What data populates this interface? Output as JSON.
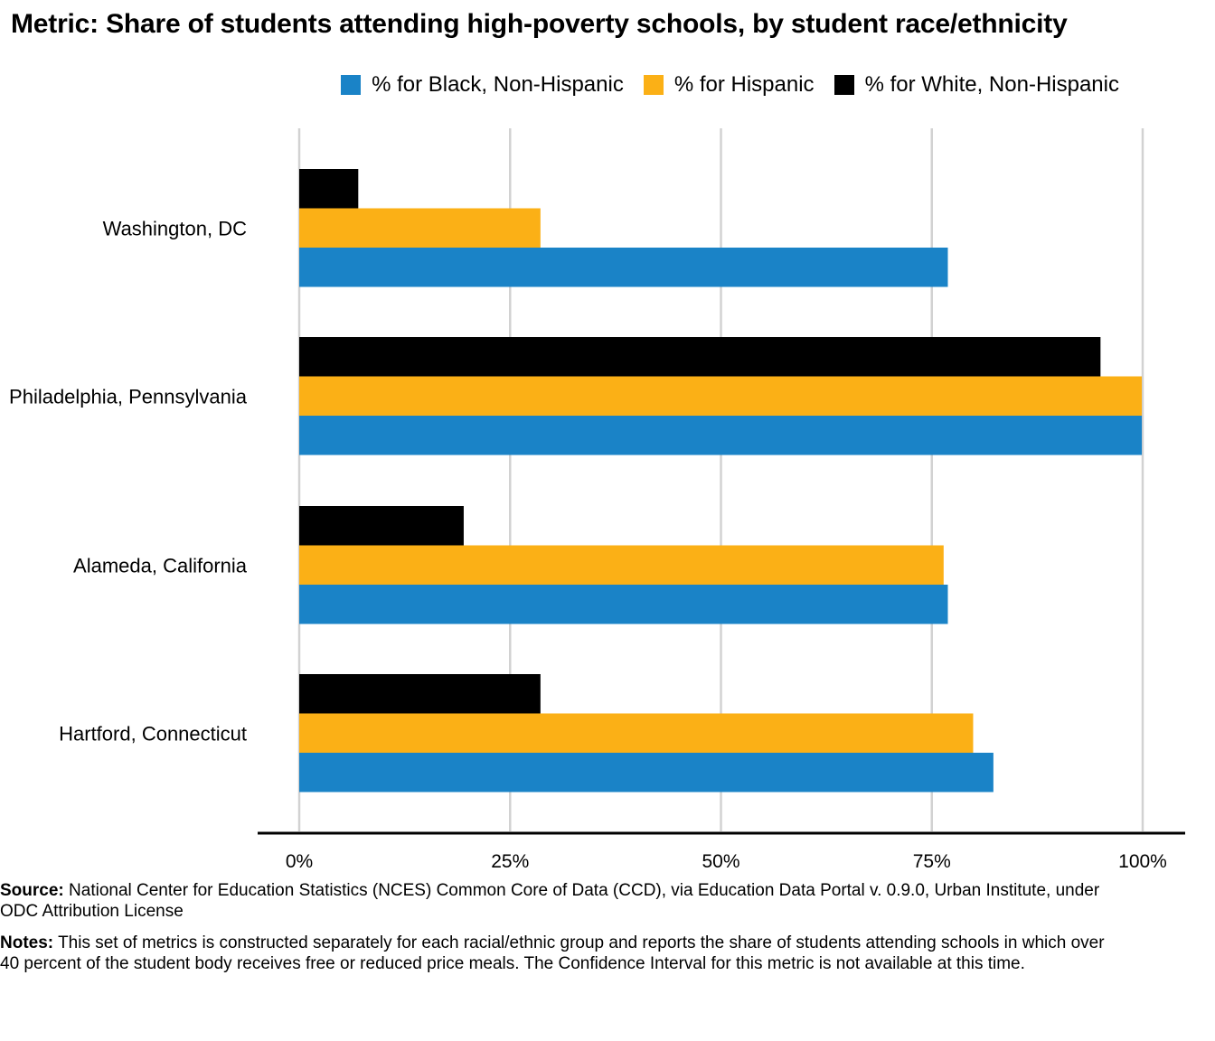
{
  "title": "Metric: Share of students attending high-poverty schools, by student race/ethnicity",
  "legend": [
    {
      "label": "% for Black, Non-Hispanic",
      "color": "#1a83c7",
      "series_index": 0
    },
    {
      "label": "% for Hispanic",
      "color": "#fbb016",
      "series_index": 1
    },
    {
      "label": "% for White, Non-Hispanic",
      "color": "#000000",
      "series_index": 2
    }
  ],
  "chart_data": {
    "type": "bar",
    "orientation": "horizontal",
    "categories": [
      "Washington, DC",
      "Philadelphia, Pennsylvania",
      "Alameda, California",
      "Hartford, Connecticut"
    ],
    "series": [
      {
        "name": "% for Black, Non-Hispanic",
        "color": "#1a83c7",
        "values": [
          76.9,
          99.9,
          76.9,
          82.3
        ]
      },
      {
        "name": "% for Hispanic",
        "color": "#fbb016",
        "values": [
          28.6,
          99.9,
          76.4,
          79.9
        ]
      },
      {
        "name": "% for White, Non-Hispanic",
        "color": "#000000",
        "values": [
          7.0,
          95.0,
          19.5,
          28.6
        ]
      }
    ],
    "xlim": [
      0,
      100
    ],
    "x_ticks": [
      0,
      25,
      50,
      75,
      100
    ],
    "x_tick_labels": [
      "0%",
      "25%",
      "50%",
      "75%",
      "100%"
    ],
    "grid": "vertical",
    "legend_position": "top-right"
  },
  "source": {
    "label": "Source:",
    "text": "National Center for Education Statistics (NCES) Common Core of Data (CCD), via Education Data Portal v. 0.9.0, Urban Institute, under ODC Attribution License"
  },
  "notes": {
    "label": "Notes:",
    "text": "This set of metrics is constructed separately for each racial/ethnic group and reports the share of students attending schools in which over 40 percent of the student body receives free or reduced price meals. The Confidence Interval for this metric is not available at this time."
  }
}
